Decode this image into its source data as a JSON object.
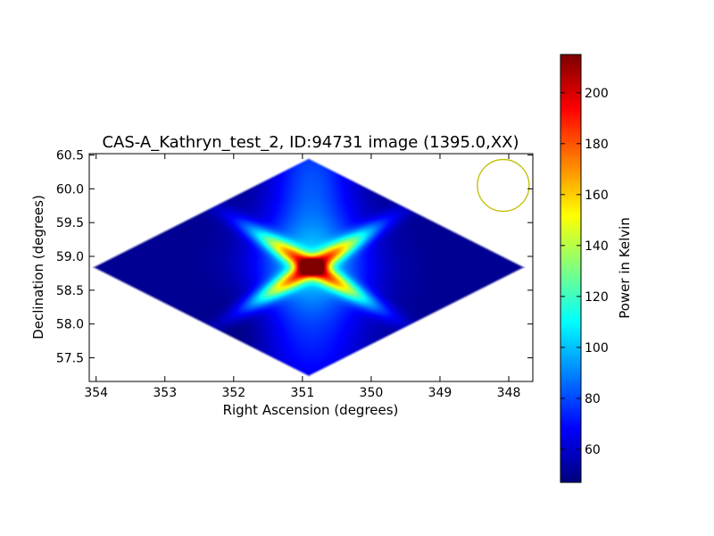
{
  "chart_data": {
    "type": "heatmap",
    "title": "CAS-A_Kathryn_test_2, ID:94731 image (1395.0,XX)",
    "xlabel": "Right Ascension (degrees)",
    "ylabel": "Declination (degrees)",
    "x_ticks": [
      "354",
      "353",
      "352",
      "351",
      "350",
      "349",
      "348"
    ],
    "y_ticks": [
      "57.5",
      "58.0",
      "58.5",
      "59.0",
      "59.5",
      "60.0",
      "60.5"
    ],
    "xlim": [
      354.1,
      347.65
    ],
    "ylim": [
      57.15,
      60.52
    ],
    "x_inverted": true,
    "colormap": "jet",
    "colorbar": {
      "label": "Power in Kelvin",
      "ticks": [
        "60",
        "80",
        "100",
        "120",
        "140",
        "160",
        "180",
        "200"
      ],
      "range": [
        47,
        215
      ]
    },
    "peak": {
      "ra": 350.87,
      "dec": 58.85,
      "value": 215
    },
    "background_value": 50,
    "footprint_corners": [
      {
        "ra": 354.08,
        "dec": 58.85
      },
      {
        "ra": 350.87,
        "dec": 60.47
      },
      {
        "ra": 347.75,
        "dec": 58.85
      },
      {
        "ra": 350.87,
        "dec": 57.22
      }
    ],
    "beam_circle": {
      "ra": 348.08,
      "dec": 60.05,
      "color": "#bfbf00"
    },
    "grid": false
  }
}
